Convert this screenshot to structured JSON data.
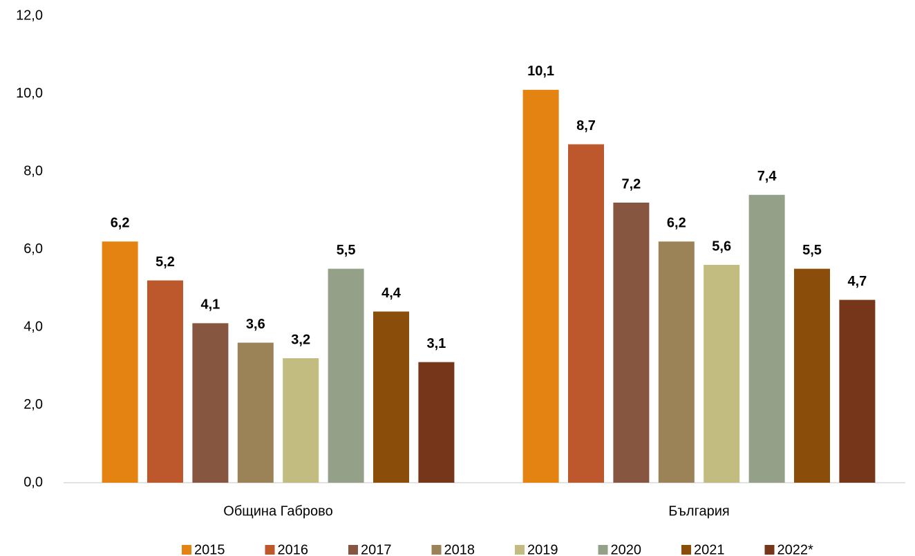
{
  "chart_data": {
    "type": "bar",
    "categories": [
      "Община Габрово",
      "България"
    ],
    "series": [
      {
        "name": "2015",
        "color": "#E48312",
        "values": [
          6.2,
          10.1
        ],
        "value_labels": [
          "6,2",
          "10,1"
        ]
      },
      {
        "name": "2016",
        "color": "#BD582C",
        "values": [
          5.2,
          8.7
        ],
        "value_labels": [
          "5,2",
          "8,7"
        ]
      },
      {
        "name": "2017",
        "color": "#865640",
        "values": [
          4.1,
          7.2
        ],
        "value_labels": [
          "4,1",
          "7,2"
        ]
      },
      {
        "name": "2018",
        "color": "#9B8357",
        "values": [
          3.6,
          6.2
        ],
        "value_labels": [
          "3,6",
          "6,2"
        ]
      },
      {
        "name": "2019",
        "color": "#C2BC80",
        "values": [
          3.2,
          5.6
        ],
        "value_labels": [
          "3,2",
          "5,6"
        ]
      },
      {
        "name": "2020",
        "color": "#94A088",
        "values": [
          5.5,
          7.4
        ],
        "value_labels": [
          "5,5",
          "7,4"
        ]
      },
      {
        "name": "2021",
        "color": "#8A4D0A",
        "values": [
          4.4,
          5.5
        ],
        "value_labels": [
          "4,4",
          "5,5"
        ]
      },
      {
        "name": "2022*",
        "color": "#75361A",
        "values": [
          3.1,
          4.7
        ],
        "value_labels": [
          "3,1",
          "4,7"
        ]
      }
    ],
    "ylim": [
      0,
      12
    ],
    "yticks": [
      {
        "value": 0,
        "label": "0,0"
      },
      {
        "value": 2,
        "label": "2,0"
      },
      {
        "value": 4,
        "label": "4,0"
      },
      {
        "value": 6,
        "label": "6,0"
      },
      {
        "value": 8,
        "label": "8,0"
      },
      {
        "value": 10,
        "label": "10,0"
      },
      {
        "value": 12,
        "label": "12,0"
      }
    ],
    "grid": false,
    "legend": "bottom"
  }
}
